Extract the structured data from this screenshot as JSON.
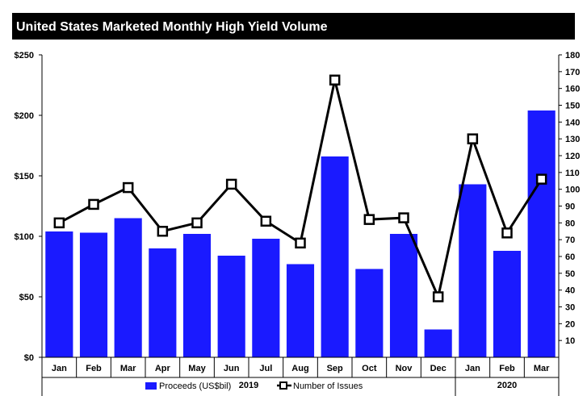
{
  "chart_data": {
    "type": "bar",
    "title": "United States Marketed Monthly High Yield Volume",
    "categories": [
      "Jan",
      "Feb",
      "Mar",
      "Apr",
      "May",
      "Jun",
      "Jul",
      "Aug",
      "Sep",
      "Oct",
      "Nov",
      "Dec",
      "Jan",
      "Feb",
      "Mar"
    ],
    "year_groups": [
      {
        "label": "2019",
        "start": 0,
        "end": 11
      },
      {
        "label": "2020",
        "start": 12,
        "end": 14
      }
    ],
    "series": [
      {
        "name": "Proceeds (US$bil)",
        "type": "bar",
        "axis": "left",
        "color": "#1A1AFF",
        "values": [
          104,
          103,
          115,
          90,
          102,
          84,
          98,
          77,
          166,
          73,
          102,
          23,
          143,
          88,
          204
        ]
      },
      {
        "name": "Number of Issues",
        "type": "line",
        "axis": "right",
        "color": "#000000",
        "marker": "square",
        "values": [
          80,
          91,
          101,
          75,
          80,
          103,
          81,
          68,
          165,
          82,
          83,
          36,
          130,
          74,
          106
        ]
      }
    ],
    "left_axis": {
      "ylim": [
        0,
        250
      ],
      "ticks": [
        0,
        50,
        100,
        150,
        200,
        250
      ],
      "tick_labels": [
        "$0",
        "$50",
        "$100",
        "$150",
        "$200",
        "$250"
      ]
    },
    "right_axis": {
      "ylim": [
        0,
        180
      ],
      "ticks": [
        10,
        20,
        30,
        40,
        50,
        60,
        70,
        80,
        90,
        100,
        110,
        120,
        130,
        140,
        150,
        160,
        170,
        180
      ],
      "tick_labels": [
        "10",
        "20",
        "30",
        "40",
        "50",
        "60",
        "70",
        "80",
        "90",
        "100",
        "110",
        "120",
        "130",
        "140",
        "150",
        "160",
        "170",
        "180"
      ]
    },
    "legend": {
      "placement": "bottom-center",
      "entries": [
        "Proceeds (US$bil)",
        "Number of Issues"
      ]
    },
    "grid": false,
    "xlabel": "",
    "ylabel": ""
  }
}
